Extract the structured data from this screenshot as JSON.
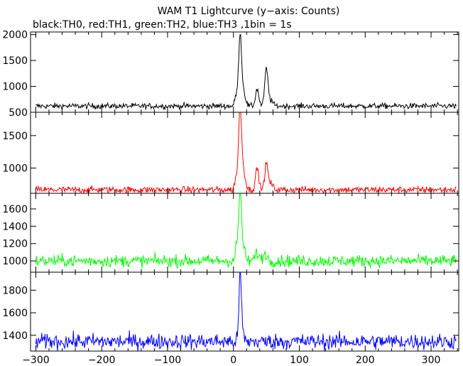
{
  "title": "WAM T1 Lightcurve (y−axis: Counts)",
  "subtitle": "black:TH0, red:TH1, green:TH2, blue:TH3 ,1bin = 1s",
  "chart_data": [
    {
      "type": "line",
      "series": [
        {
          "name": "TH0",
          "color": "#000000",
          "baseline": 620,
          "noise": 28,
          "peaks": [
            [
              4,
              200,
              2
            ],
            [
              10,
              1350,
              2.2
            ],
            [
              15,
              300,
              3
            ],
            [
              36,
              330,
              2.5
            ],
            [
              50,
              720,
              2.5
            ],
            [
              57,
              100,
              3
            ]
          ]
        }
      ],
      "xlim": [
        -308,
        342
      ],
      "ylim": [
        500,
        2050
      ],
      "yticks": [
        500,
        1000,
        1500,
        2000
      ],
      "xlabel": "",
      "ylabel": ""
    },
    {
      "type": "line",
      "series": [
        {
          "name": "TH1",
          "color": "#ff0000",
          "baseline": 665,
          "noise": 26,
          "peaks": [
            [
              4,
              200,
              2
            ],
            [
              10,
              1250,
              2.2
            ],
            [
              15,
              300,
              3
            ],
            [
              36,
              330,
              2.5
            ],
            [
              50,
              400,
              2.5
            ],
            [
              57,
              90,
              3
            ]
          ]
        }
      ],
      "xlim": [
        -308,
        342
      ],
      "ylim": [
        610,
        1860
      ],
      "yticks": [
        1000,
        1500
      ],
      "xlabel": "",
      "ylabel": ""
    },
    {
      "type": "line",
      "series": [
        {
          "name": "TH2",
          "color": "#00ff00",
          "baseline": 1000,
          "noise": 35,
          "peaks": [
            [
              5,
              180,
              2
            ],
            [
              10,
              740,
              2
            ],
            [
              14,
              180,
              3
            ],
            [
              36,
              90,
              3
            ],
            [
              48,
              90,
              3
            ]
          ]
        }
      ],
      "xlim": [
        -308,
        342
      ],
      "ylim": [
        870,
        1780
      ],
      "yticks": [
        1000,
        1200,
        1400,
        1600
      ],
      "xlabel": "",
      "ylabel": ""
    },
    {
      "type": "line",
      "series": [
        {
          "name": "TH3",
          "color": "#0000ff",
          "baseline": 1345,
          "noise": 35,
          "peaks": [
            [
              10,
              560,
              1.8
            ],
            [
              13,
              120,
              2
            ]
          ]
        }
      ],
      "xlim": [
        -308,
        342
      ],
      "ylim": [
        1260,
        1960
      ],
      "yticks": [
        1400,
        1600,
        1800
      ],
      "xticks": [
        -300,
        -200,
        -100,
        0,
        100,
        200,
        300
      ],
      "xlabel": "",
      "ylabel": ""
    }
  ]
}
